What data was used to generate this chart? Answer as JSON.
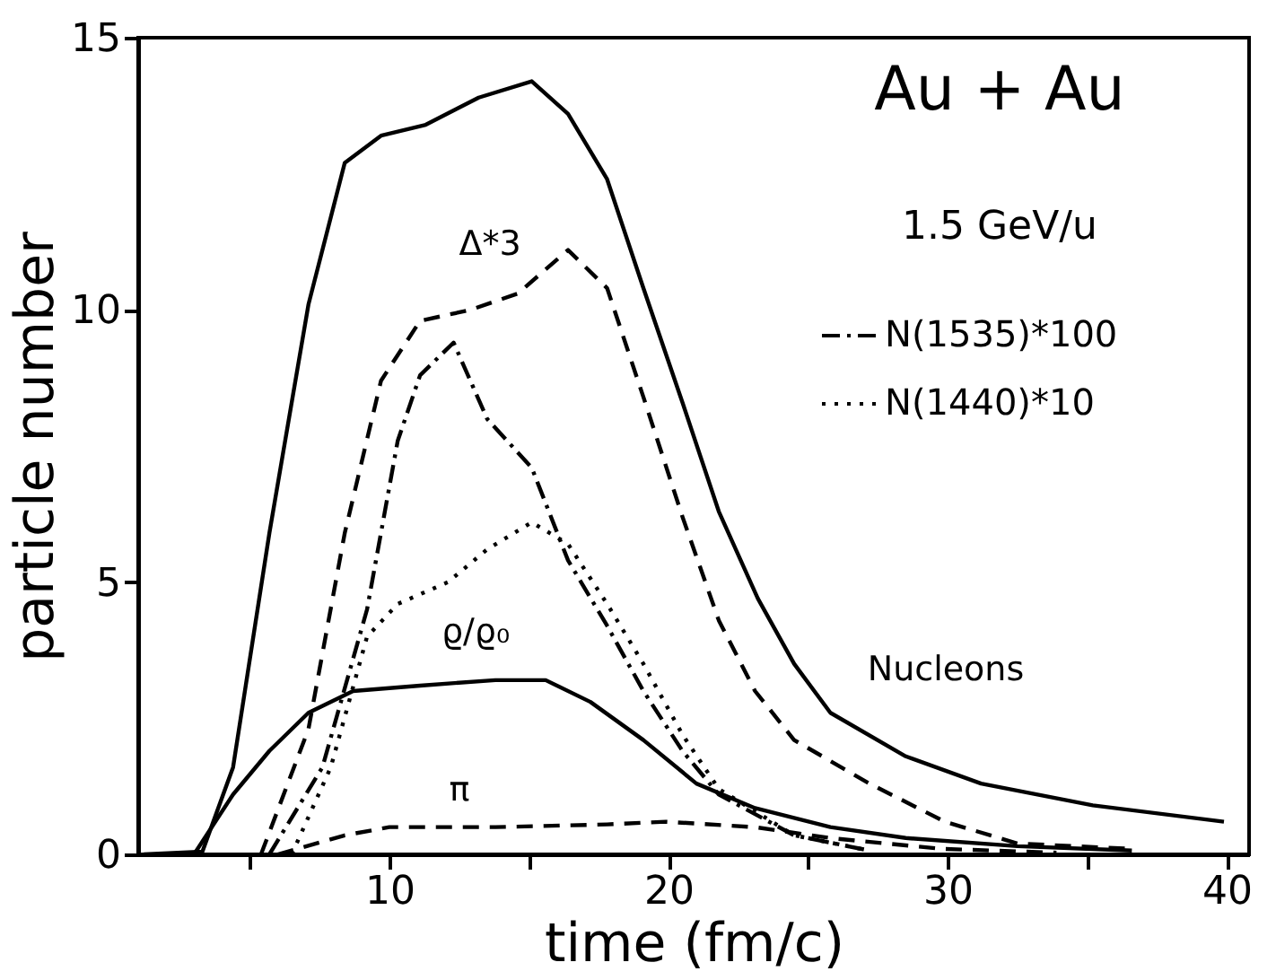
{
  "chart_data": {
    "type": "line",
    "xlabel": "time (fm/c)",
    "ylabel": "particle number",
    "xlim": [
      1,
      40.8
    ],
    "ylim": [
      0,
      15
    ],
    "xticks": [
      {
        "value": 5,
        "label": null
      },
      10,
      {
        "value": 15,
        "label": null
      },
      20,
      {
        "value": 25,
        "label": null
      },
      30,
      {
        "value": 35,
        "label": null
      },
      40
    ],
    "yticks": [
      0,
      5,
      10,
      15
    ],
    "grid": false,
    "legend": "top right",
    "series": [
      {
        "color": "#000000",
        "line_style": "solid",
        "x": [
          1.2,
          3.3,
          4.4,
          5.7,
          7.1,
          8.4,
          9.7,
          11.3,
          13.2,
          15.1,
          16.4,
          17.8,
          19.1,
          20.5,
          21.8,
          23.2,
          24.5,
          25.8,
          28.5,
          31.2,
          35.2,
          39.9
        ],
        "values": [
          0,
          0.05,
          1.6,
          5.9,
          10.1,
          12.7,
          13.2,
          13.4,
          13.9,
          14.2,
          13.6,
          12.4,
          10.4,
          8.3,
          6.3,
          4.7,
          3.5,
          2.6,
          1.8,
          1.3,
          0.9,
          0.6
        ]
      },
      {
        "color": "#000000",
        "line_style": "dashed",
        "x": [
          5.4,
          7.1,
          8.4,
          9.7,
          11.1,
          12.9,
          14.6,
          16.4,
          17.8,
          19.1,
          20.5,
          21.8,
          23.1,
          24.5,
          27.2,
          29.9,
          32.5,
          36.6
        ],
        "values": [
          0,
          2.3,
          5.9,
          8.7,
          9.8,
          10.0,
          10.3,
          11.1,
          10.4,
          8.4,
          6.2,
          4.3,
          3.0,
          2.1,
          1.3,
          0.6,
          0.2,
          0.1
        ]
      },
      {
        "name": "N(1535)*100",
        "color": "#000000",
        "line_style": "dashdot",
        "x": [
          5.7,
          7.6,
          9.2,
          10.3,
          11.1,
          12.3,
          13.5,
          15.1,
          16.4,
          17.8,
          19.1,
          20.5,
          21.8,
          24.5,
          27.2
        ],
        "values": [
          0,
          1.6,
          4.5,
          7.6,
          8.8,
          9.4,
          8.0,
          7.1,
          5.4,
          4.2,
          3.0,
          1.9,
          1.1,
          0.35,
          0.07
        ]
      },
      {
        "name": "N(1440)*10",
        "color": "#000000",
        "line_style": "dotted",
        "x": [
          6.5,
          7.9,
          9.2,
          10.3,
          12.1,
          13.5,
          15.1,
          16.4,
          17.8,
          19.1,
          20.5,
          21.8,
          24.5,
          27.2
        ],
        "values": [
          0,
          1.6,
          4.0,
          4.6,
          5.0,
          5.6,
          6.1,
          5.7,
          4.6,
          3.5,
          2.2,
          1.2,
          0.35,
          0.07
        ]
      },
      {
        "color": "#000000",
        "line_style": "solid",
        "x": [
          3.0,
          4.4,
          5.7,
          7.1,
          8.7,
          11.1,
          13.8,
          15.6,
          17.2,
          19.1,
          21.0,
          23.1,
          25.8,
          28.5,
          32.5,
          36.6
        ],
        "values": [
          0,
          1.1,
          1.9,
          2.6,
          3.0,
          3.1,
          3.2,
          3.2,
          2.8,
          2.1,
          1.3,
          0.85,
          0.5,
          0.3,
          0.15,
          0.07
        ]
      },
      {
        "color": "#000000",
        "line_style": "dashed",
        "x": [
          6.0,
          8.4,
          10,
          13.8,
          17.8,
          19.9,
          23.1,
          25.8,
          29.8,
          33.9
        ],
        "values": [
          0,
          0.35,
          0.5,
          0.5,
          0.55,
          0.6,
          0.5,
          0.3,
          0.1,
          0.03
        ]
      }
    ],
    "annotations": [
      "Au + Au",
      "1.5 GeV/u",
      "Δ*3",
      "ϱ/ϱ₀",
      "π",
      "Nucleons"
    ]
  }
}
